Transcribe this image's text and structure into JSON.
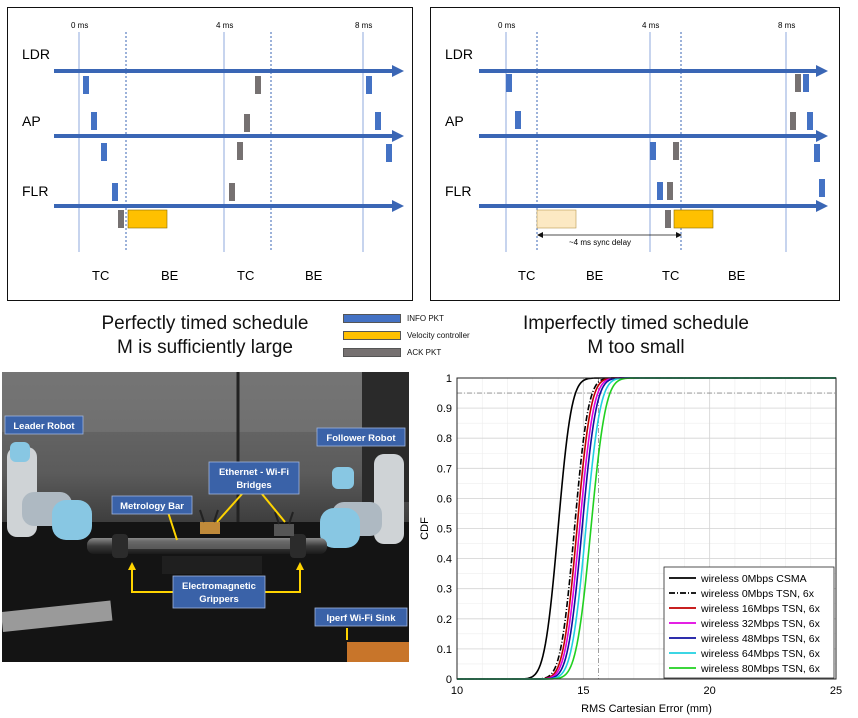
{
  "colors": {
    "info": "#4472C4",
    "velocity": "#FFC000",
    "ack": "#767171",
    "axis": "#3A66B5",
    "label_bg": "#3A62A8"
  },
  "time_ticks": [
    "0 ms",
    "4 ms",
    "8 ms"
  ],
  "rows": [
    "LDR",
    "AP",
    "FLR"
  ],
  "phases_left": [
    "TC",
    "BE",
    "TC",
    "BE"
  ],
  "phases_right": [
    "TC",
    "BE",
    "TC",
    "BE"
  ],
  "sync_delay": "~4 ms sync delay",
  "captions": {
    "left": [
      "Perfectly timed schedule",
      "M is sufficiently large"
    ],
    "right": [
      "Imperfectly timed schedule",
      "M too small"
    ]
  },
  "legend": [
    {
      "label": "INFO PKT",
      "color": "#4472C4"
    },
    {
      "label": "Velocity controller",
      "color": "#FFC000"
    },
    {
      "label": "ACK PKT",
      "color": "#767171"
    }
  ],
  "photo_labels": {
    "leader": "Leader Robot",
    "follower": "Follower Robot",
    "bridges": [
      "Ethernet - Wi-Fi",
      "Bridges"
    ],
    "metrology": "Metrology Bar",
    "grippers": [
      "Electromagnetic",
      "Grippers"
    ],
    "sink": "Iperf Wi-Fi Sink"
  },
  "chart_data": {
    "type": "line",
    "xlabel": "RMS Cartesian Error (mm)",
    "ylabel": "CDF",
    "xlim": [
      10,
      25
    ],
    "ylim": [
      0,
      1
    ],
    "xticks": [
      10,
      15,
      20,
      25
    ],
    "yticks": [
      0,
      0.1,
      0.2,
      0.3,
      0.4,
      0.5,
      0.6,
      0.7,
      0.8,
      0.9,
      1
    ],
    "grid": true,
    "legend_position": "bottom-right",
    "reference": {
      "x": 15.6,
      "y": 0.95
    },
    "series": [
      {
        "name": "wireless 0Mbps CSMA",
        "color": "#000000",
        "dash": "",
        "mu": 14.0,
        "sigma": 0.42
      },
      {
        "name": "wireless 0Mbps TSN, 6x",
        "color": "#000000",
        "dash": "6,2,1,2",
        "mu": 14.65,
        "sigma": 0.43
      },
      {
        "name": "wireless 16Mbps TSN, 6x",
        "color": "#C00000",
        "dash": "",
        "mu": 14.75,
        "sigma": 0.43
      },
      {
        "name": "wireless 32Mbps TSN, 6x",
        "color": "#E000E0",
        "dash": "",
        "mu": 14.85,
        "sigma": 0.44
      },
      {
        "name": "wireless 48Mbps TSN, 6x",
        "color": "#1010A0",
        "dash": "",
        "mu": 14.95,
        "sigma": 0.44
      },
      {
        "name": "wireless 64Mbps TSN, 6x",
        "color": "#20D0E0",
        "dash": "",
        "mu": 15.1,
        "sigma": 0.45
      },
      {
        "name": "wireless 80Mbps TSN, 6x",
        "color": "#20D020",
        "dash": "",
        "mu": 15.3,
        "sigma": 0.46
      }
    ]
  }
}
